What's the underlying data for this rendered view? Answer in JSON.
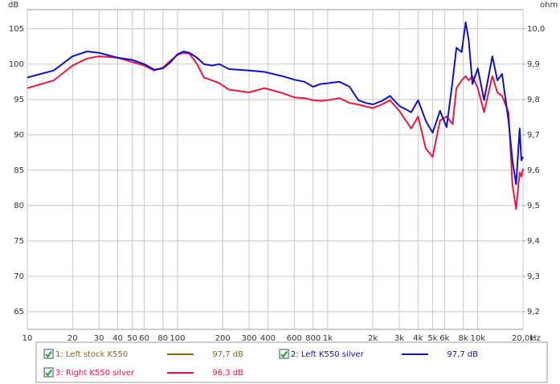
{
  "chart_data": {
    "type": "line",
    "x_unit": "Hz",
    "y_unit": "dB",
    "y2_unit": "ohm",
    "log_x": true,
    "grid": true,
    "xlim": [
      10,
      20000
    ],
    "ylim": [
      62.5,
      107.7
    ],
    "y2lim": [
      9.15,
      10.054
    ],
    "xticks": [
      10,
      20,
      30,
      40,
      50,
      60,
      80,
      100,
      200,
      300,
      400,
      600,
      800,
      {
        "value": 1000,
        "label": "1k"
      },
      {
        "value": 2000,
        "label": "2k"
      },
      {
        "value": 3000,
        "label": "3k"
      },
      {
        "value": 4000,
        "label": "4k"
      },
      {
        "value": 5000,
        "label": "5k"
      },
      {
        "value": 6000,
        "label": "6k"
      },
      {
        "value": 8000,
        "label": "8k"
      },
      {
        "value": 10000,
        "label": "10k"
      },
      {
        "value": 20000,
        "label": "20,0k"
      }
    ],
    "yticks": [
      65,
      70,
      75,
      80,
      85,
      90,
      95,
      100,
      105
    ],
    "y2ticks": [
      {
        "value": 9.2,
        "label": "9,2"
      },
      {
        "value": 9.3,
        "label": "9,3"
      },
      {
        "value": 9.4,
        "label": "9,4"
      },
      {
        "value": 9.5,
        "label": "9,5"
      },
      {
        "value": 9.6,
        "label": "9,6"
      },
      {
        "value": 9.7,
        "label": "9,7"
      },
      {
        "value": 9.8,
        "label": "9,8"
      },
      {
        "value": 9.9,
        "label": "9,9"
      },
      {
        "value": 10.0,
        "label": "10,0"
      }
    ],
    "x": [
      10,
      15,
      20,
      25,
      30,
      40,
      50,
      60,
      70,
      80,
      90,
      100,
      110,
      120,
      135,
      150,
      170,
      190,
      220,
      300,
      380,
      500,
      600,
      700,
      800,
      900,
      1000,
      1200,
      1400,
      1600,
      1800,
      2000,
      2300,
      2600,
      3000,
      3600,
      4000,
      4500,
      5000,
      5600,
      6200,
      6800,
      7200,
      7800,
      8300,
      8700,
      9200,
      10000,
      11000,
      12500,
      13500,
      14500,
      16000,
      17000,
      18000,
      19000,
      19500,
      20000
    ],
    "series": [
      {
        "name": "1: Left stock K550",
        "color": "#8b6914",
        "level": "97,7 dB"
      },
      {
        "name": "2: Left K550 silver",
        "color": "#1010c8",
        "level": "97,7 dB",
        "values": [
          98.1,
          99.1,
          101.1,
          101.8,
          101.6,
          100.9,
          100.6,
          100,
          99.2,
          99.4,
          100.3,
          101.4,
          101.8,
          101.6,
          100.9,
          100,
          99.8,
          100,
          99.3,
          99.1,
          98.9,
          98.3,
          97.8,
          97.5,
          96.8,
          97.2,
          97.3,
          97.5,
          96.8,
          94.9,
          94.5,
          94.3,
          94.8,
          95.5,
          94.1,
          93.2,
          94.9,
          92,
          90.3,
          93.4,
          91.1,
          97.7,
          102.3,
          101.7,
          105.9,
          103.4,
          97.2,
          99.4,
          94.9,
          101.1,
          97.7,
          98.6,
          92,
          86.4,
          83,
          90.9,
          86.4,
          86.9
        ]
      },
      {
        "name": "3: Right K550 silver",
        "color": "#f0143c",
        "level": "96,3 dB",
        "values": [
          96.6,
          97.7,
          99.8,
          100.8,
          101.1,
          100.9,
          100.3,
          99.8,
          99.1,
          99.5,
          100.5,
          101.3,
          101.6,
          101.5,
          100,
          98.1,
          97.7,
          97.3,
          96.4,
          96,
          96.6,
          95.9,
          95.3,
          95.2,
          94.9,
          94.8,
          94.9,
          95.2,
          94.5,
          94.3,
          94,
          93.8,
          94.3,
          94.9,
          93.4,
          90.9,
          92.6,
          88.1,
          86.9,
          92,
          92.6,
          91.5,
          96.6,
          97.7,
          98.3,
          97.7,
          98.3,
          96.6,
          93.2,
          98.3,
          96,
          95.5,
          93.2,
          83,
          79.5,
          84.7,
          84.1,
          85.2
        ]
      }
    ]
  }
}
